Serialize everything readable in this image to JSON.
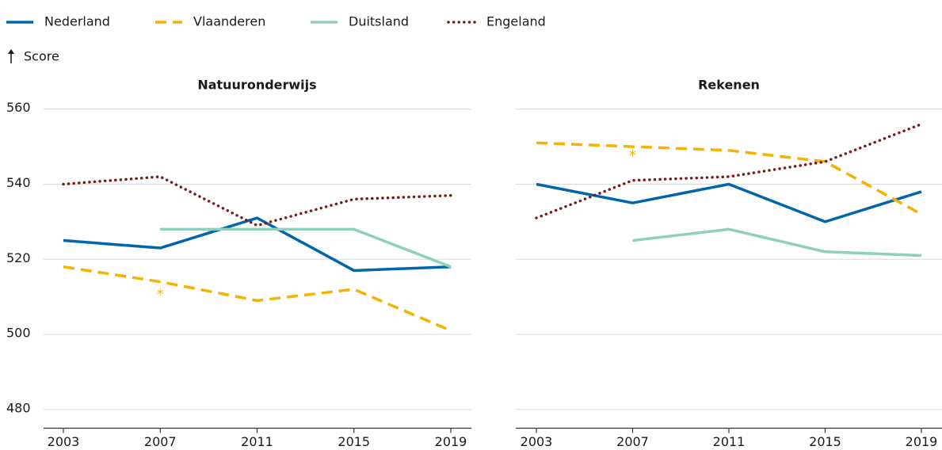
{
  "y_label": "Score",
  "chart_data": [
    {
      "type": "line",
      "title": "Natuuronderwijs",
      "x": [
        2003,
        2007,
        2011,
        2015,
        2019
      ],
      "xlim": [
        2003,
        2019
      ],
      "xticks": [
        2003,
        2007,
        2011,
        2015,
        2019
      ],
      "ylim": [
        475,
        565
      ],
      "yticks": [
        480,
        500,
        520,
        540,
        560
      ],
      "grid": true,
      "series": [
        {
          "name": "Nederland",
          "color": "#0065ab",
          "style": "solid",
          "values": [
            525,
            523,
            531,
            517,
            518
          ]
        },
        {
          "name": "Vlaanderen",
          "color": "#f5b200",
          "style": "dashed",
          "values": [
            518,
            514,
            509,
            512,
            501
          ]
        },
        {
          "name": "Duitsland",
          "color": "#8fcfc0",
          "style": "solid",
          "values": [
            null,
            528,
            528,
            528,
            518
          ]
        },
        {
          "name": "Engeland",
          "color": "#7b1a1a",
          "style": "dotted",
          "values": [
            540,
            542,
            529,
            536,
            537
          ]
        }
      ],
      "annotations": [
        {
          "text": "*",
          "x": 2007,
          "y": 510.5,
          "color": "#f5b200"
        }
      ]
    },
    {
      "type": "line",
      "title": "Rekenen",
      "x": [
        2003,
        2007,
        2011,
        2015,
        2019
      ],
      "xlim": [
        2003,
        2019
      ],
      "xticks": [
        2003,
        2007,
        2011,
        2015,
        2019
      ],
      "ylim": [
        475,
        565
      ],
      "yticks": [
        480,
        500,
        520,
        540,
        560
      ],
      "grid": true,
      "series": [
        {
          "color": "#0065ab",
          "style": "solid",
          "values": [
            540,
            535,
            540,
            530,
            538
          ]
        },
        {
          "color": "#f5b200",
          "style": "dashed",
          "values": [
            551,
            550,
            549,
            546,
            532
          ]
        },
        {
          "color": "#8fcfc0",
          "style": "solid",
          "values": [
            null,
            525,
            528,
            522,
            521
          ]
        },
        {
          "color": "#7b1a1a",
          "style": "dotted",
          "values": [
            531,
            541,
            542,
            546,
            556
          ]
        }
      ],
      "annotations": [
        {
          "text": "*",
          "x": 2007,
          "y": 547.5,
          "color": "#f5b200"
        }
      ]
    }
  ]
}
